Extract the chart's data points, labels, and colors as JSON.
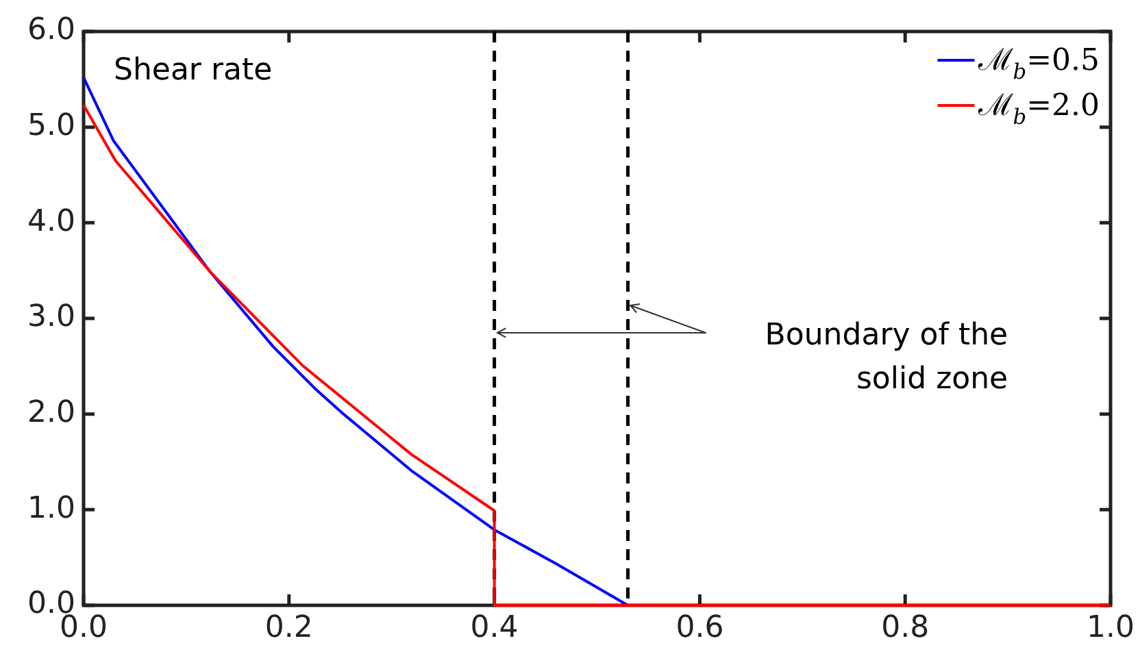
{
  "chart_data": {
    "type": "line",
    "series": [
      {
        "name": "ℳ$_{b}$=0.5",
        "color": "#0000ff",
        "x": [
          0,
          0.029,
          0.123,
          0.185,
          0.225,
          0.252,
          0.319,
          0.4,
          0.461,
          0.53
        ],
        "values": [
          5.52,
          4.86,
          3.49,
          2.7,
          2.27,
          2.01,
          1.41,
          0.79,
          0.43,
          0
        ]
      },
      {
        "name": "ℳ$_{b}$=2.0",
        "color": "#ff0000",
        "x": [
          0,
          0.031,
          0.123,
          0.213,
          0.319,
          0.4,
          0.4,
          1.0
        ],
        "values": [
          5.23,
          4.65,
          3.49,
          2.51,
          1.58,
          0.99,
          0,
          0
        ]
      }
    ],
    "xlim": [
      0,
      1
    ],
    "xticks": [
      {
        "value": 0,
        "label": "0.0"
      },
      {
        "value": 0.2,
        "label": "0.2"
      },
      {
        "value": 0.4,
        "label": "0.4"
      },
      {
        "value": 0.6,
        "label": "0.6"
      },
      {
        "value": 0.8,
        "label": "0.8"
      },
      {
        "value": 1,
        "label": "1.0"
      }
    ],
    "ylim": [
      0,
      6
    ],
    "yticks": [
      {
        "value": 0,
        "label": "0.0"
      },
      {
        "value": 1,
        "label": "1.0"
      },
      {
        "value": 2,
        "label": "2.0"
      },
      {
        "value": 3,
        "label": "3.0"
      },
      {
        "value": 4,
        "label": "4.0"
      },
      {
        "value": 5,
        "label": "5.0"
      },
      {
        "value": 6,
        "label": "6.0"
      }
    ],
    "ref_lines": [
      {
        "axis": "x",
        "value": 0.4,
        "color": "#000000",
        "line_style": "dashed"
      },
      {
        "axis": "x",
        "value": 0.53,
        "color": "#000000",
        "line_style": "dashed"
      }
    ],
    "annotations": [
      "Shear rate",
      "Boundary of the\nsolid zone"
    ],
    "legend": "top right",
    "grid": false,
    "marker": "none",
    "line_style": "solid"
  }
}
